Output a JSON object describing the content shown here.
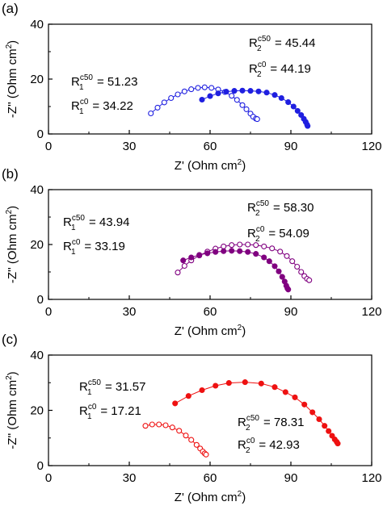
{
  "chart_data": [
    {
      "type": "scatter",
      "panel_label": "(a)",
      "xlabel": "Z' (Ohm cm",
      "xlabel_sup": "2",
      "xlabel_end": ")",
      "ylabel": "-Z'' (Ohm cm",
      "ylabel_sup": "2",
      "ylabel_end": ")",
      "xlim": [
        0,
        120
      ],
      "ylim": [
        0,
        40
      ],
      "xticks": [
        0,
        30,
        60,
        90,
        120
      ],
      "yticks": [
        0,
        20,
        40
      ],
      "color": "#1f1fe0",
      "series": [
        {
          "fill": "open",
          "x": [
            38.0,
            40.5,
            43.0,
            45.5,
            48.0,
            50.5,
            53.0,
            55.5,
            58.0,
            60.5,
            63.0,
            65.5,
            68.0,
            70.0,
            72.0,
            73.5,
            75.0,
            76.0,
            77.0,
            77.5
          ],
          "y": [
            7.5,
            9.6,
            11.5,
            13.1,
            14.4,
            15.5,
            16.3,
            16.8,
            17.0,
            16.8,
            16.2,
            15.3,
            13.9,
            12.4,
            10.5,
            9.0,
            7.4,
            6.3,
            5.6,
            5.4
          ]
        },
        {
          "fill": "filled",
          "x": [
            57.0,
            60.0,
            63.0,
            66.0,
            69.0,
            72.0,
            75.0,
            78.0,
            81.0,
            84.0,
            86.5,
            89.0,
            91.0,
            92.5,
            93.8,
            94.8,
            95.5,
            96.0,
            96.2
          ],
          "y": [
            12.5,
            13.8,
            14.8,
            15.4,
            15.7,
            15.8,
            15.7,
            15.5,
            15.1,
            14.2,
            13.1,
            11.6,
            10.0,
            8.4,
            6.9,
            5.5,
            4.4,
            3.4,
            2.9
          ]
        }
      ],
      "annotations": [
        {
          "base": "R",
          "sub": "1",
          "sup": "c50",
          "value": " = 51.23"
        },
        {
          "base": "R",
          "sub": "1",
          "sup": "c0",
          "value": " = 34.22"
        },
        {
          "base": "R",
          "sub": "2",
          "sup": "c50",
          "value": " = 45.44"
        },
        {
          "base": "R",
          "sub": "2",
          "sup": "c0",
          "value": " = 44.19"
        }
      ]
    },
    {
      "type": "scatter",
      "panel_label": "(b)",
      "xlabel": "Z' (Ohm cm",
      "xlabel_sup": "2",
      "xlabel_end": ")",
      "ylabel": "-Z'' (Ohm cm",
      "ylabel_sup": "2",
      "ylabel_end": ")",
      "xlim": [
        0,
        120
      ],
      "ylim": [
        0,
        40
      ],
      "xticks": [
        0,
        30,
        60,
        90,
        120
      ],
      "yticks": [
        0,
        20,
        40
      ],
      "color": "#800080",
      "series": [
        {
          "fill": "open",
          "x": [
            48.0,
            50.5,
            53.0,
            56.0,
            59.0,
            62.0,
            65.0,
            68.0,
            71.0,
            74.0,
            77.0,
            80.0,
            83.0,
            86.0,
            88.5,
            90.5,
            92.3,
            93.8,
            95.0,
            96.0,
            96.8
          ],
          "y": [
            9.8,
            12.2,
            14.2,
            16.0,
            17.4,
            18.5,
            19.3,
            19.8,
            20.0,
            20.0,
            19.8,
            19.3,
            18.6,
            17.4,
            15.8,
            13.9,
            11.9,
            10.0,
            8.5,
            7.5,
            7.0
          ]
        },
        {
          "fill": "filled",
          "x": [
            50.0,
            53.0,
            56.0,
            59.0,
            62.0,
            65.0,
            68.0,
            71.0,
            74.0,
            77.0,
            80.0,
            82.0,
            84.0,
            85.5,
            86.8,
            87.7,
            88.3,
            88.7,
            89.0
          ],
          "y": [
            14.2,
            15.3,
            16.2,
            16.8,
            17.3,
            17.6,
            17.7,
            17.6,
            17.3,
            16.6,
            15.3,
            13.9,
            12.1,
            10.2,
            8.2,
            6.5,
            5.0,
            4.0,
            3.6
          ]
        }
      ],
      "annotations": [
        {
          "base": "R",
          "sub": "1",
          "sup": "c50",
          "value": " = 43.94"
        },
        {
          "base": "R",
          "sub": "1",
          "sup": "c0",
          "value": " = 33.19"
        },
        {
          "base": "R",
          "sub": "2",
          "sup": "c50",
          "value": " = 58.30"
        },
        {
          "base": "R",
          "sub": "2",
          "sup": "c0",
          "value": " = 54.09"
        }
      ]
    },
    {
      "type": "scatter",
      "panel_label": "(c)",
      "xlabel": "Z' (Ohm cm",
      "xlabel_sup": "2",
      "xlabel_end": ")",
      "ylabel": "-Z'' (Ohm cm",
      "ylabel_sup": "2",
      "ylabel_end": ")",
      "xlim": [
        0,
        120
      ],
      "ylim": [
        0,
        40
      ],
      "xticks": [
        0,
        30,
        60,
        90,
        120
      ],
      "yticks": [
        0,
        20,
        40
      ],
      "color": "#ee1111",
      "series": [
        {
          "fill": "open",
          "x": [
            36.0,
            38.5,
            41.0,
            43.5,
            46.0,
            48.5,
            51.0,
            53.0,
            55.0,
            56.3,
            57.3,
            58.0,
            58.5
          ],
          "y": [
            14.4,
            14.9,
            14.9,
            14.6,
            13.8,
            12.6,
            10.9,
            9.3,
            7.5,
            6.2,
            5.1,
            4.4,
            4.0
          ]
        },
        {
          "fill": "filled",
          "x": [
            47.0,
            52.0,
            57.0,
            62.0,
            67.0,
            73.0,
            79.0,
            84.0,
            88.0,
            91.5,
            95.0,
            98.0,
            100.5,
            102.5,
            104.0,
            105.3,
            106.3,
            107.0,
            107.4
          ],
          "y": [
            22.5,
            25.2,
            27.3,
            28.9,
            29.9,
            30.2,
            29.7,
            28.4,
            26.6,
            24.7,
            22.1,
            19.3,
            16.8,
            14.4,
            12.5,
            10.8,
            9.5,
            8.6,
            8.0
          ]
        }
      ],
      "annotations": [
        {
          "base": "R",
          "sub": "1",
          "sup": "c50",
          "value": " = 31.57"
        },
        {
          "base": "R",
          "sub": "1",
          "sup": "c0",
          "value": " = 17.21"
        },
        {
          "base": "R",
          "sub": "2",
          "sup": "c50",
          "value": " = 78.31"
        },
        {
          "base": "R",
          "sub": "2",
          "sup": "c0",
          "value": " = 42.93"
        }
      ]
    }
  ]
}
